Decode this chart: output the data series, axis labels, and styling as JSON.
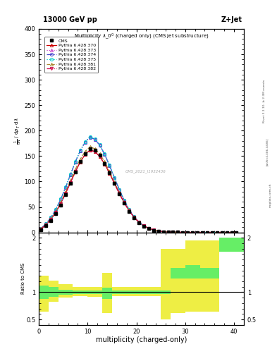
{
  "title_top": "13000 GeV pp",
  "title_right": "Z+Jet",
  "plot_title": "Multiplicity $\\lambda\\_0^0$ (charged only) (CMS jet substructure)",
  "xlabel": "multiplicity (charged-only)",
  "watermark": "CMS_2021_I1932436",
  "rivet_label": "Rivet 3.1.10, ≥ 2.3M events",
  "arxiv_label": "[arXiv:1306.3436]",
  "mcplots_label": "mcplots.cern.ch",
  "color_370": "#cc0000",
  "color_373": "#cc44cc",
  "color_374": "#4444cc",
  "color_375": "#00cccc",
  "color_381": "#aa8833",
  "color_382": "#cc0044",
  "ylim_main": [
    0,
    400
  ],
  "xlim": [
    0,
    42
  ],
  "ratio_ylim": [
    0.4,
    2.1
  ],
  "green_color": "#66ee66",
  "yellow_color": "#eeee44",
  "ratio_bins": [
    0,
    2,
    4,
    7,
    10,
    13,
    15,
    20,
    25,
    27,
    30,
    33,
    37,
    42
  ],
  "ratio_green_lo": [
    0.88,
    0.92,
    0.95,
    0.97,
    0.97,
    0.88,
    0.97,
    0.97,
    0.97,
    1.25,
    1.25,
    1.25,
    1.75
  ],
  "ratio_green_hi": [
    1.12,
    1.1,
    1.05,
    1.03,
    1.03,
    1.08,
    1.03,
    1.03,
    1.03,
    1.45,
    1.5,
    1.45,
    2.0
  ],
  "ratio_yellow_lo": [
    0.65,
    0.82,
    0.9,
    0.93,
    0.92,
    0.62,
    0.93,
    0.93,
    0.5,
    0.62,
    0.65,
    0.65,
    1.75
  ],
  "ratio_yellow_hi": [
    1.3,
    1.22,
    1.15,
    1.1,
    1.1,
    1.35,
    1.1,
    1.1,
    1.8,
    1.8,
    1.95,
    1.95,
    2.0
  ]
}
